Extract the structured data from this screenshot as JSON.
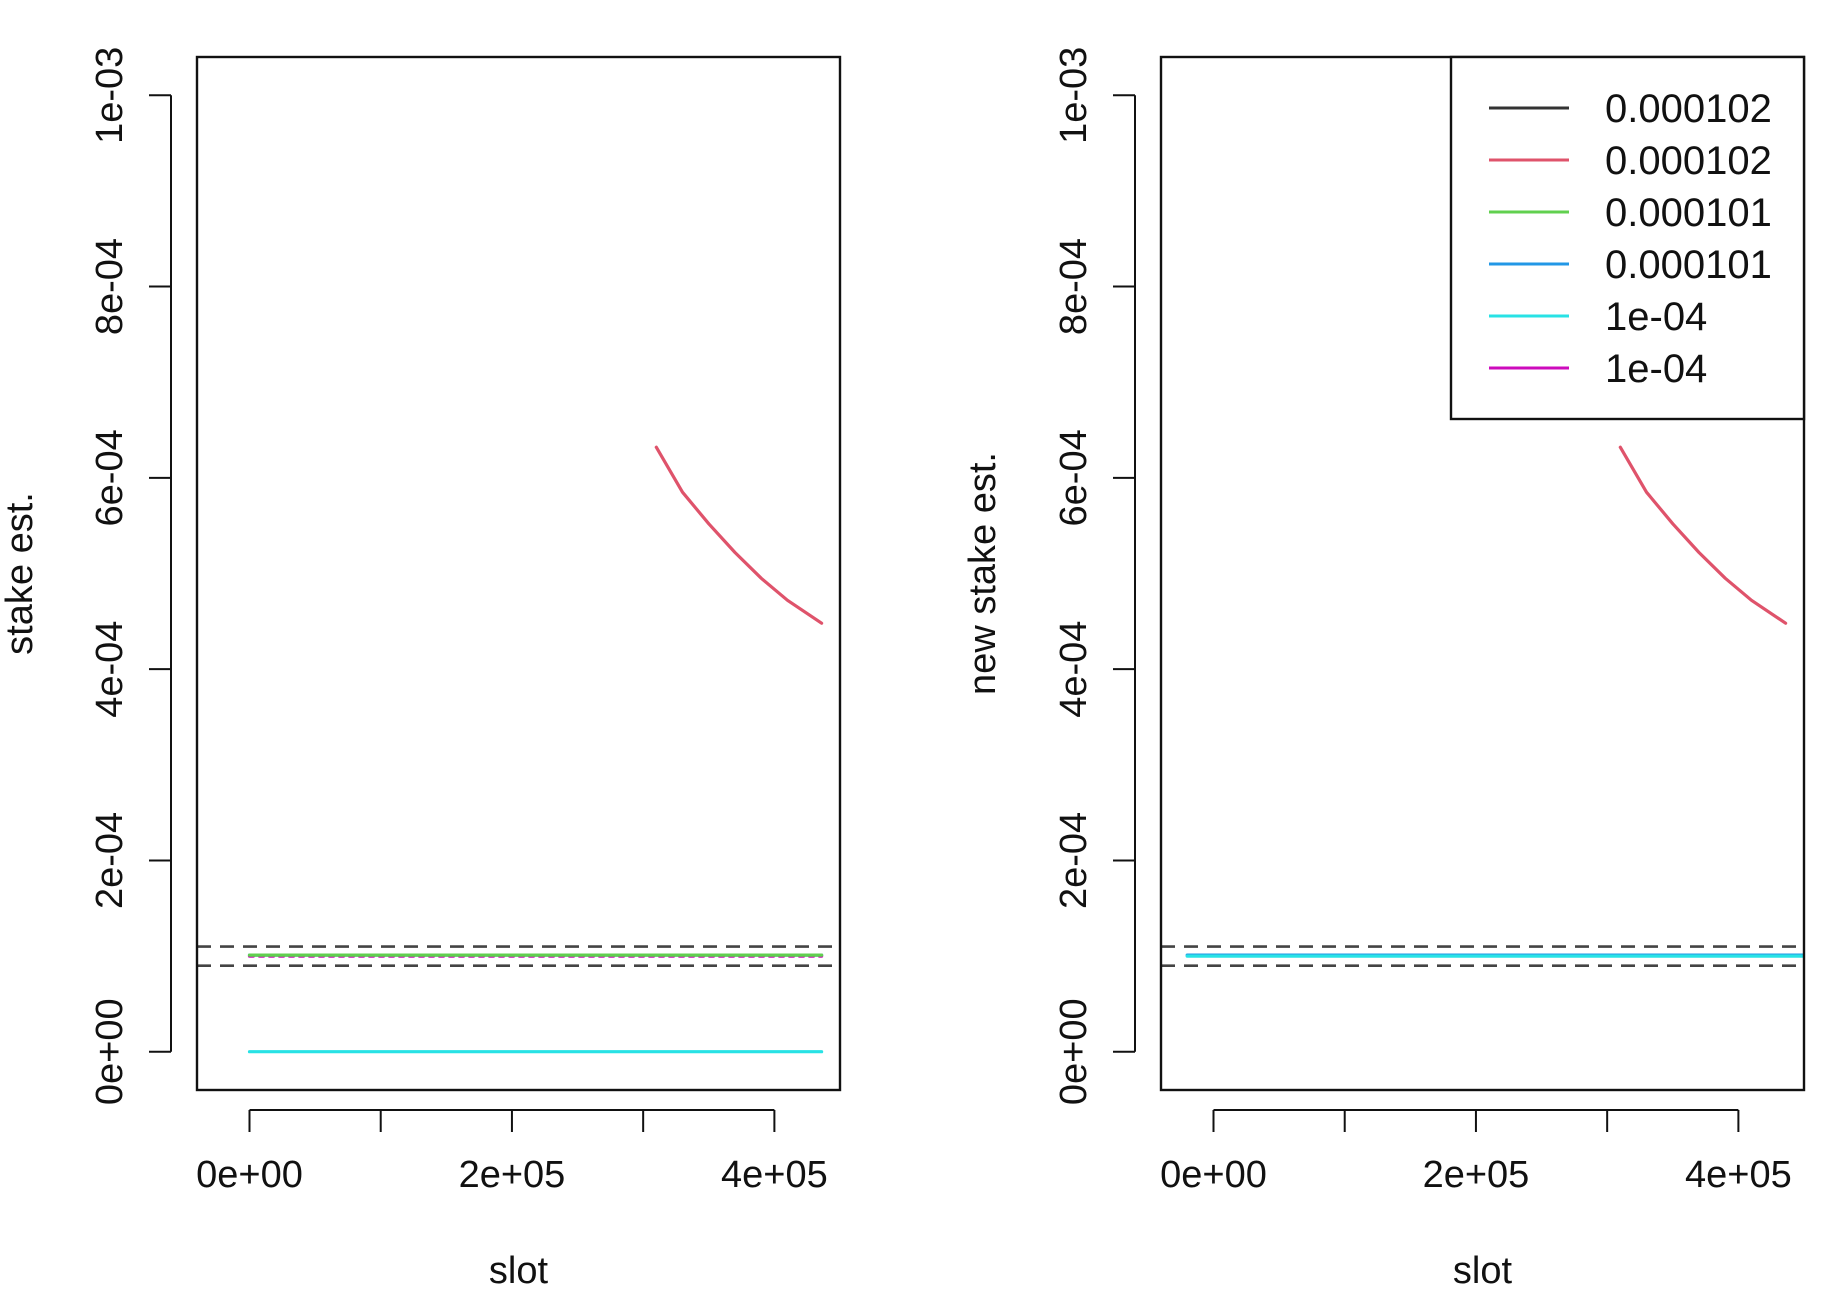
{
  "chart_data": [
    {
      "type": "line",
      "xlabel": "slot",
      "ylabel": "stake est.",
      "xlim": [
        -40000,
        450000
      ],
      "ylim": [
        -4e-05,
        0.00104
      ],
      "x_ticks": [
        0,
        100000,
        200000,
        300000,
        400000
      ],
      "x_tick_labels": [
        "0e+00",
        "",
        "2e+05",
        "",
        "4e+05"
      ],
      "y_ticks": [
        0,
        0.0002,
        0.0004,
        0.0006,
        0.0008,
        0.001
      ],
      "y_tick_labels": [
        "0e+00",
        "2e-04",
        "4e-04",
        "6e-04",
        "8e-04",
        "1e-03"
      ],
      "reference_lines": [
        {
          "y": 0.00011,
          "style": "dashed",
          "color": "#444444"
        },
        {
          "y": 9e-05,
          "style": "dashed",
          "color": "#444444"
        }
      ],
      "series": [
        {
          "color": "#DF536B",
          "x": [
            310000,
            330000,
            350000,
            370000,
            390000,
            410000,
            436000
          ],
          "y": [
            0.000632,
            0.000585,
            0.000552,
            0.000522,
            0.000495,
            0.000472,
            0.000448
          ]
        },
        {
          "color": "#28E2E5",
          "x": [
            0,
            436000
          ],
          "y": [
            0,
            0
          ]
        },
        {
          "color": "#2297E6",
          "x": [
            0,
            436000
          ],
          "y": [
            0.000101,
            0.000101
          ]
        },
        {
          "color": "#CD0BBC",
          "x": [
            0,
            436000
          ],
          "y": [
            0.0001,
            0.0001
          ],
          "style": "dotted"
        },
        {
          "color": "#61D04F",
          "x": [
            0,
            436000
          ],
          "y": [
            0.000101,
            0.000101
          ]
        }
      ]
    },
    {
      "type": "line",
      "xlabel": "slot",
      "ylabel": "new stake est.",
      "xlim": [
        -40000,
        450000
      ],
      "ylim": [
        -4e-05,
        0.00104
      ],
      "x_ticks": [
        0,
        100000,
        200000,
        300000,
        400000
      ],
      "x_tick_labels": [
        "0e+00",
        "",
        "2e+05",
        "",
        "4e+05"
      ],
      "y_ticks": [
        0,
        0.0002,
        0.0004,
        0.0006,
        0.0008,
        0.001
      ],
      "y_tick_labels": [
        "0e+00",
        "2e-04",
        "4e-04",
        "6e-04",
        "8e-04",
        "1e-03"
      ],
      "reference_lines": [
        {
          "y": 0.00011,
          "style": "dashed",
          "color": "#444444"
        },
        {
          "y": 9e-05,
          "style": "dashed",
          "color": "#444444"
        }
      ],
      "series": [
        {
          "color": "#DF536B",
          "x": [
            310000,
            330000,
            350000,
            370000,
            390000,
            410000,
            436000
          ],
          "y": [
            0.000632,
            0.000585,
            0.000552,
            0.000522,
            0.000495,
            0.000472,
            0.000448
          ]
        },
        {
          "color": "#2297E6",
          "x": [
            -20000,
            450000
          ],
          "y": [
            0.000101,
            0.000101
          ]
        },
        {
          "color": "#28E2E5",
          "x": [
            -20000,
            450000
          ],
          "y": [
            0.0001,
            0.0001
          ]
        }
      ],
      "legend": {
        "position": "top-right",
        "entries": [
          {
            "label": "0.000102",
            "color": "#333333"
          },
          {
            "label": "0.000102",
            "color": "#DF536B"
          },
          {
            "label": "0.000101",
            "color": "#61D04F"
          },
          {
            "label": "0.000101",
            "color": "#2297E6"
          },
          {
            "label": "1e-04",
            "color": "#28E2E5"
          },
          {
            "label": "1e-04",
            "color": "#CD0BBC"
          }
        ]
      }
    }
  ]
}
